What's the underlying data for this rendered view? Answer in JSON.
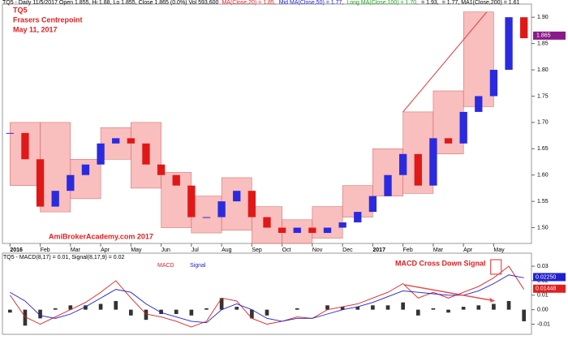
{
  "chart_data": [
    {
      "type": "candlestick",
      "header_segments": [
        {
          "text": "TQ5 - Daily 11/5/2017 Open 1.855, Hi 1.88, Lo 1.855, Close 1.865 (0.0%) Vol 593,600",
          "color": "#000000"
        },
        {
          "text": "MA(Close,20) = 1.85,",
          "color": "#e02020"
        },
        {
          "text": "Mid MA(Close,50) = 1.77,",
          "color": "#2020d0"
        },
        {
          "text": "Long MA(Close,100) = 1.70,",
          "color": "#20a020"
        },
        {
          "text": "= 1.93,",
          "color": "#000000"
        },
        {
          "text": "= 1.77, MA1(Close,200) = 1.61",
          "color": "#000000"
        }
      ],
      "title": "TQ5",
      "subtitle": "Frasers Centrepoint",
      "date": "May 11, 2017",
      "watermark": "AmiBrokerAcademy.com  2017",
      "x": [
        0,
        0.5,
        1,
        1.5,
        2,
        2.5,
        3,
        3.5,
        4,
        4.5,
        5,
        5.5,
        6,
        6.5,
        7,
        7.5,
        8,
        8.5,
        9,
        9.5,
        10,
        10.5,
        11,
        11.5,
        12,
        12.5,
        13,
        13.5,
        14,
        14.5,
        15,
        15.5,
        16,
        16.5,
        17
      ],
      "values": [
        1.68,
        1.63,
        1.54,
        1.57,
        1.6,
        1.62,
        1.66,
        1.67,
        1.66,
        1.62,
        1.6,
        1.58,
        1.52,
        1.52,
        1.55,
        1.57,
        1.52,
        1.5,
        1.49,
        1.5,
        1.49,
        1.5,
        1.51,
        1.53,
        1.56,
        1.6,
        1.64,
        1.58,
        1.67,
        1.66,
        1.72,
        1.75,
        1.8,
        1.9,
        1.86
      ],
      "up_color": "#2a2ae0",
      "down_color": "#e01818",
      "boxes": [
        {
          "x": 0,
          "low": 1.58,
          "high": 1.7
        },
        {
          "x": 1,
          "low": 1.53,
          "high": 1.7
        },
        {
          "x": 2,
          "low": 1.555,
          "high": 1.63
        },
        {
          "x": 3,
          "low": 1.63,
          "high": 1.69
        },
        {
          "x": 4,
          "low": 1.575,
          "high": 1.7
        },
        {
          "x": 5,
          "low": 1.5,
          "high": 1.605
        },
        {
          "x": 6,
          "low": 1.49,
          "high": 1.56
        },
        {
          "x": 7,
          "low": 1.495,
          "high": 1.595
        },
        {
          "x": 8,
          "low": 1.47,
          "high": 1.54
        },
        {
          "x": 9,
          "low": 1.47,
          "high": 1.515
        },
        {
          "x": 10,
          "low": 1.48,
          "high": 1.54
        },
        {
          "x": 11,
          "low": 1.52,
          "high": 1.58
        },
        {
          "x": 12,
          "low": 1.56,
          "high": 1.65
        },
        {
          "x": 13,
          "low": 1.565,
          "high": 1.72
        },
        {
          "x": 14,
          "low": 1.64,
          "high": 1.76
        },
        {
          "x": 15,
          "low": 1.73,
          "high": 1.91
        }
      ],
      "box_color": "#f7a8a8",
      "trendline": {
        "x": [
          13,
          15.77
        ],
        "values": [
          1.72,
          1.91
        ],
        "color": "#e05050"
      },
      "last_tag": {
        "value": 1.865,
        "label": "1.865",
        "color": "#8a1a8a"
      },
      "xlim": [
        -0.25,
        17.25
      ],
      "xticks": [
        {
          "value": 0,
          "label": "2016"
        },
        {
          "value": 1,
          "label": "Feb"
        },
        {
          "value": 2,
          "label": "Mar"
        },
        {
          "value": 3,
          "label": "Apr"
        },
        {
          "value": 4,
          "label": "May"
        },
        {
          "value": 5,
          "label": "Jun"
        },
        {
          "value": 6,
          "label": "Jul"
        },
        {
          "value": 7,
          "label": "Aug"
        },
        {
          "value": 8,
          "label": "Sep"
        },
        {
          "value": 9,
          "label": "Oct"
        },
        {
          "value": 10,
          "label": "Nov"
        },
        {
          "value": 11,
          "label": "Dec"
        },
        {
          "value": 12,
          "label": "2017"
        },
        {
          "value": 13,
          "label": "Feb"
        },
        {
          "value": 14,
          "label": "Mar"
        },
        {
          "value": 15,
          "label": "Apr"
        },
        {
          "value": 16,
          "label": "May"
        }
      ],
      "ylim": [
        1.47,
        1.925
      ],
      "yticks": [
        {
          "value": 1.5,
          "label": "1.50"
        },
        1.55,
        {
          "value": 1.6,
          "label": "1.60"
        },
        1.65,
        {
          "value": 1.7,
          "label": "1.70"
        },
        1.75,
        {
          "value": 1.8,
          "label": "1.80"
        },
        1.85,
        {
          "value": 1.9,
          "label": "1.90"
        }
      ]
    },
    {
      "type": "line",
      "title": "TQ5 - MACD(8,17) = 0.01, Signal(8,17,9) = 0.02",
      "annotation": "MACD Cross Down Signal",
      "x": [
        0,
        0.5,
        1,
        1.5,
        2,
        2.5,
        3,
        3.5,
        4,
        4.5,
        5,
        5.5,
        6,
        6.5,
        7,
        7.5,
        8,
        8.5,
        9,
        9.5,
        10,
        10.5,
        11,
        11.5,
        12,
        12.5,
        13,
        13.5,
        14,
        14.5,
        15,
        15.5,
        16,
        16.5,
        17
      ],
      "series": [
        {
          "name": "MACD",
          "color": "#e02020",
          "values": [
            0.01,
            -0.005,
            -0.01,
            -0.005,
            0,
            0.005,
            0.012,
            0.02,
            0.008,
            -0.003,
            -0.005,
            -0.008,
            -0.012,
            -0.008,
            0.008,
            0.006,
            -0.006,
            -0.01,
            -0.008,
            -0.005,
            -0.006,
            0,
            0.002,
            0.004,
            0.008,
            0.012,
            0.018,
            0.008,
            0.012,
            0.008,
            0.012,
            0.016,
            0.022,
            0.03,
            0.014
          ]
        },
        {
          "name": "Signal",
          "color": "#2020d0",
          "values": [
            0.012,
            0.006,
            -0.004,
            -0.006,
            -0.003,
            0.002,
            0.008,
            0.014,
            0.012,
            0.004,
            -0.002,
            -0.005,
            -0.008,
            -0.009,
            0,
            0.004,
            0,
            -0.006,
            -0.008,
            -0.006,
            -0.006,
            -0.003,
            0,
            0.002,
            0.005,
            0.009,
            0.013,
            0.012,
            0.011,
            0.01,
            0.01,
            0.013,
            0.018,
            0.024,
            0.022
          ]
        }
      ],
      "histogram": {
        "color": "#333333",
        "values": [
          -0.002,
          -0.011,
          -0.006,
          0.001,
          0.003,
          0.003,
          0.004,
          0.006,
          -0.004,
          -0.007,
          -0.003,
          -0.003,
          -0.004,
          0.001,
          0.008,
          0.002,
          -0.006,
          -0.004,
          0,
          0.001,
          0,
          0.003,
          0.002,
          0.002,
          0.003,
          0.003,
          0.005,
          -0.004,
          0.001,
          -0.002,
          0.002,
          0.003,
          0.004,
          0.006,
          -0.008
        ]
      },
      "arrow": {
        "x": [
          13.05,
          16.03
        ],
        "values": [
          0.0172,
          0.0061
        ],
        "color": "#e05050"
      },
      "highlight": {
        "x": [
          15.9,
          16.25
        ],
        "values": [
          0.0245,
          0.0345
        ],
        "color": "#e05050"
      },
      "tags": [
        {
          "value": 0.0225,
          "label": "0.02250",
          "color": "#2020d0"
        },
        {
          "value": 0.01448,
          "label": "0.01448",
          "color": "#e02020"
        }
      ],
      "xlim": [
        -0.25,
        17.25
      ],
      "ylim": [
        -0.017,
        0.039
      ],
      "yticks": [
        0.03,
        0.02,
        0.01,
        {
          "value": 0,
          "label": "0.00"
        },
        -0.01
      ]
    }
  ]
}
